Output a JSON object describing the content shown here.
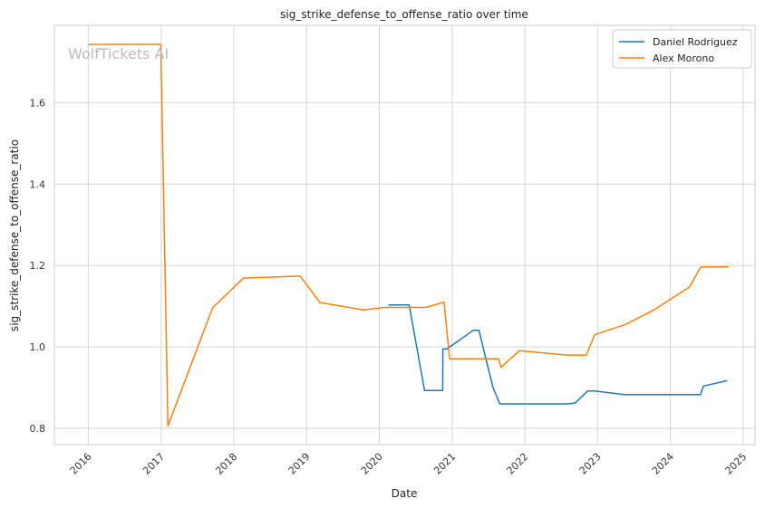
{
  "chart_data": {
    "type": "line",
    "title": "sig_strike_defense_to_offense_ratio over time",
    "xlabel": "Date",
    "ylabel": "sig_strike_defense_to_offense_ratio",
    "watermark": "WolfTickets AI",
    "xlim": [
      "2015-07-15",
      "2025-03-01"
    ],
    "ylim": [
      0.76,
      1.79
    ],
    "x_ticks": [
      "2016",
      "2017",
      "2018",
      "2019",
      "2020",
      "2021",
      "2022",
      "2023",
      "2024",
      "2025"
    ],
    "y_ticks": [
      "0.8",
      "1.0",
      "1.2",
      "1.4",
      "1.6"
    ],
    "grid": true,
    "legend_position": "top-right",
    "series": [
      {
        "name": "Daniel Rodriguez",
        "color": "#1f77b4",
        "points": [
          [
            "2020-02-15",
            1.103
          ],
          [
            "2020-05-30",
            1.103
          ],
          [
            "2020-08-15",
            0.893
          ],
          [
            "2020-11-14",
            0.893
          ],
          [
            "2020-11-15",
            0.995
          ],
          [
            "2020-12-05",
            0.995
          ],
          [
            "2021-04-17",
            1.041
          ],
          [
            "2021-05-15",
            1.041
          ],
          [
            "2021-07-24",
            0.901
          ],
          [
            "2021-08-28",
            0.86
          ],
          [
            "2022-08-06",
            0.86
          ],
          [
            "2022-09-10",
            0.862
          ],
          [
            "2022-11-12",
            0.892
          ],
          [
            "2022-12-17",
            0.892
          ],
          [
            "2023-05-13",
            0.883
          ],
          [
            "2024-06-01",
            0.883
          ],
          [
            "2024-06-15",
            0.904
          ],
          [
            "2024-10-12",
            0.917
          ]
        ]
      },
      {
        "name": "Alex Morono",
        "color": "#ff7f0e",
        "points": [
          [
            "2016-01-02",
            1.743
          ],
          [
            "2016-12-30",
            1.743
          ],
          [
            "2017-02-04",
            0.806
          ],
          [
            "2017-09-16",
            1.096
          ],
          [
            "2018-02-18",
            1.169
          ],
          [
            "2018-11-30",
            1.174
          ],
          [
            "2019-03-09",
            1.109
          ],
          [
            "2019-10-12",
            1.091
          ],
          [
            "2020-01-25",
            1.097
          ],
          [
            "2020-08-22",
            1.097
          ],
          [
            "2020-11-21",
            1.11
          ],
          [
            "2020-12-19",
            0.971
          ],
          [
            "2021-08-21",
            0.971
          ],
          [
            "2021-09-04",
            0.95
          ],
          [
            "2021-12-04",
            0.991
          ],
          [
            "2022-07-30",
            0.98
          ],
          [
            "2022-11-05",
            0.98
          ],
          [
            "2022-12-17",
            1.03
          ],
          [
            "2023-05-20",
            1.055
          ],
          [
            "2023-10-07",
            1.09
          ],
          [
            "2024-04-06",
            1.147
          ],
          [
            "2024-06-01",
            1.196
          ],
          [
            "2024-10-19",
            1.197
          ]
        ]
      }
    ]
  }
}
